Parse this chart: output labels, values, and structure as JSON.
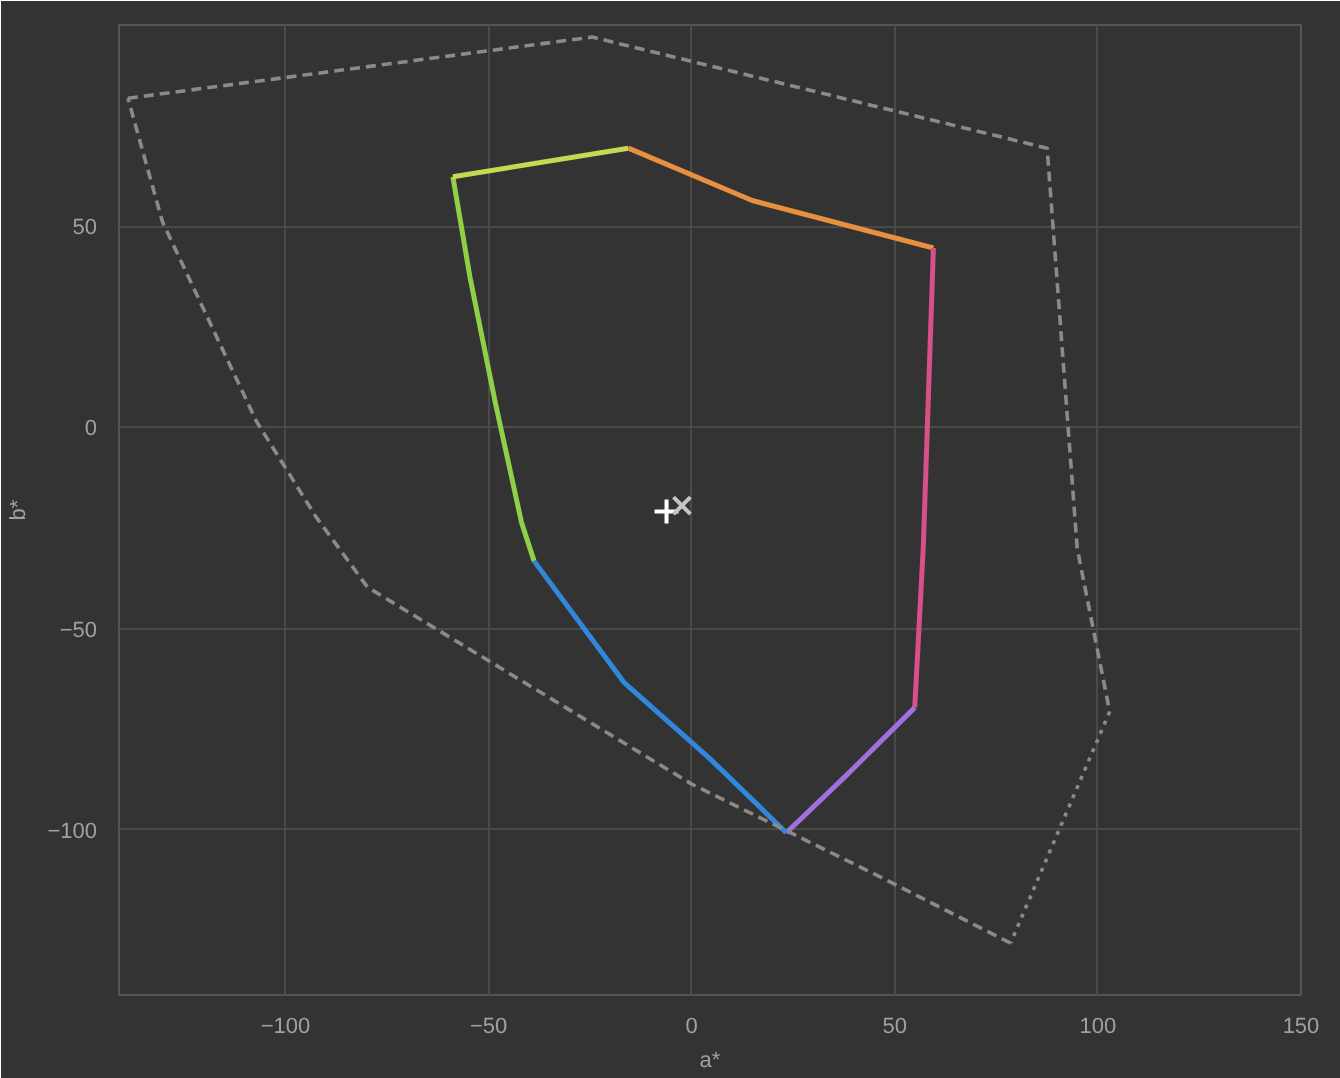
{
  "chart_data": {
    "type": "line",
    "xlabel": "a*",
    "ylabel": "b*",
    "xlim": [
      -141,
      150
    ],
    "ylim": [
      -141,
      100
    ],
    "xticks": [
      -100,
      -50,
      0,
      50,
      100,
      150
    ],
    "yticks": [
      -100,
      -50,
      0,
      50
    ],
    "grid": true,
    "line_style": "solid",
    "marker": "none",
    "series": [
      {
        "color": "#8fd048",
        "x": [
          -38.8,
          -41.9,
          -48.3,
          -54.6,
          -58.8
        ],
        "values": [
          -33.2,
          -23.6,
          5.9,
          37.4,
          62.3
        ]
      },
      {
        "color": "#c8d850",
        "x": [
          -58.8,
          -15.6
        ],
        "values": [
          62.3,
          69.4
        ]
      },
      {
        "color": "#e89040",
        "x": [
          -15.6,
          14.9,
          59.5
        ],
        "values": [
          69.4,
          56.4,
          44.6
        ]
      },
      {
        "color": "#d85088",
        "x": [
          59.5,
          57.0,
          54.9
        ],
        "values": [
          44.6,
          -30.0,
          -69.6
        ]
      },
      {
        "color": "#a070e0",
        "x": [
          54.9,
          38.0,
          23.3
        ],
        "values": [
          -69.6,
          -86.5,
          -100.7
        ]
      },
      {
        "color": "#3088dc",
        "x": [
          23.3,
          4.4,
          -16.7,
          -38.8
        ],
        "values": [
          -100.7,
          -82.2,
          -63.3,
          -33.2
        ]
      },
      {
        "color": "#8a8a8a",
        "line_style": "dashed",
        "x": [
          -138.8,
          -24.5,
          87.5,
          94.9,
          102.9
        ],
        "values": [
          81.8,
          97.0,
          69.4,
          -30.0,
          -70.6
        ]
      },
      {
        "color": "#8a8a8a",
        "line_style": "dotted",
        "x": [
          102.9,
          78.5
        ],
        "values": [
          -70.6,
          -128.1
        ]
      },
      {
        "color": "#8a8a8a",
        "line_style": "dashed",
        "x": [
          78.5,
          46.5,
          0,
          -79.8,
          -92.5,
          -107.2,
          -130.3,
          -138.8
        ],
        "values": [
          -128.1,
          -111.7,
          -88.6,
          -39.7,
          -22.2,
          1.6,
          51.1,
          81.8
        ]
      },
      {
        "type": "scatter",
        "marker": "cross",
        "color": "#ffffff",
        "x": [
          -6.2
        ],
        "values": [
          -20.9
        ]
      },
      {
        "type": "scatter",
        "marker": "cross",
        "color": "#c4c4c4",
        "x": [
          -2.4
        ],
        "values": [
          -19.4
        ]
      }
    ]
  }
}
